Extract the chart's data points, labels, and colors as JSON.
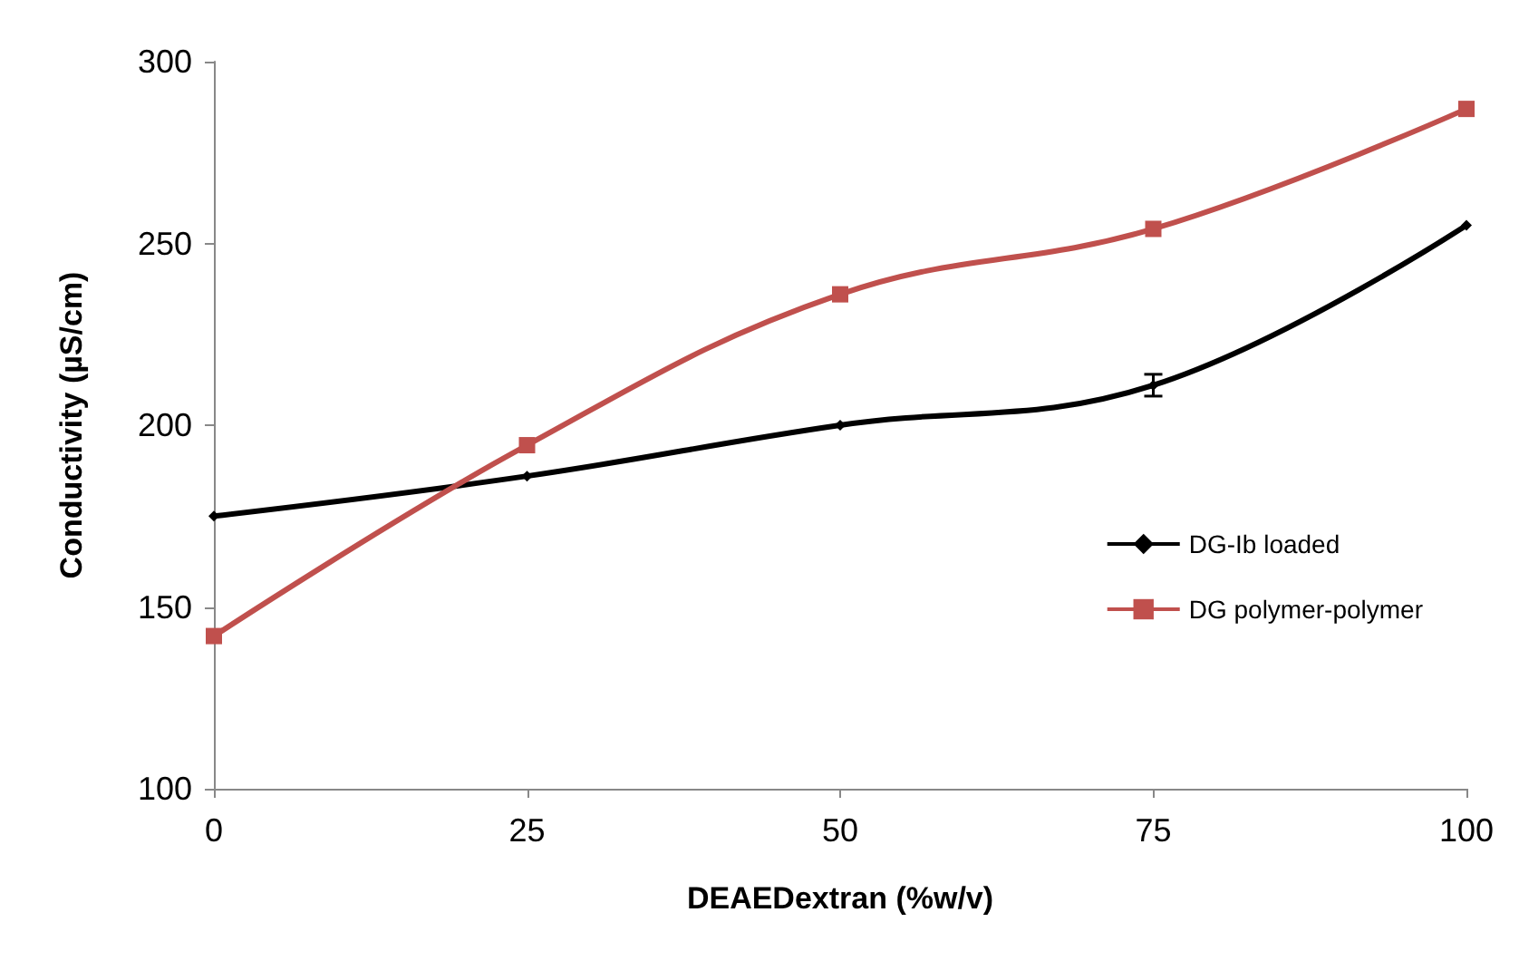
{
  "chart_data": {
    "type": "line",
    "xlabel": "DEAEDextran (%w/v)",
    "ylabel": "Conductivity (µS/cm)",
    "x": [
      0,
      25,
      50,
      75,
      100
    ],
    "series": [
      {
        "name": "DG-Ib loaded",
        "color": "#000000",
        "marker": "diamond",
        "values": [
          175,
          186,
          200,
          211,
          255
        ],
        "errors": [
          null,
          null,
          null,
          3,
          null
        ]
      },
      {
        "name": "DG polymer-polymer",
        "color": "#c0504d",
        "marker": "square",
        "values": [
          142,
          194.5,
          236,
          254,
          287
        ]
      }
    ],
    "xlim": [
      0,
      100
    ],
    "xticks": [
      0,
      25,
      50,
      75,
      100
    ],
    "ylim": [
      100,
      300
    ],
    "yticks": [
      100,
      150,
      200,
      250,
      300
    ],
    "grid": false,
    "legend": "right"
  }
}
